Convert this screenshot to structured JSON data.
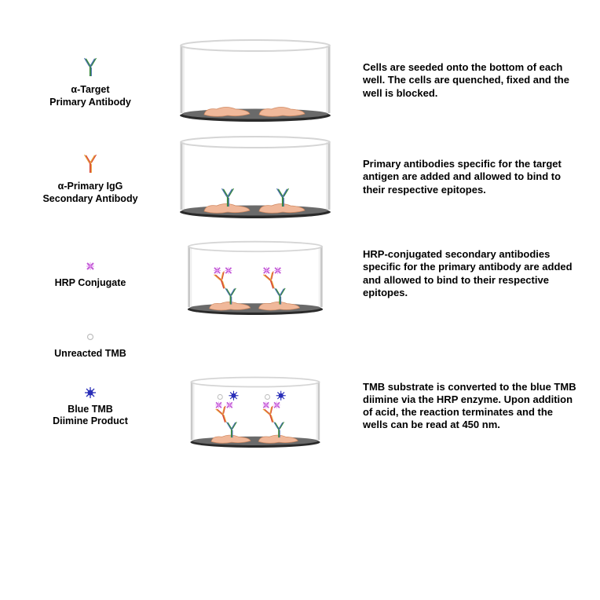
{
  "type": "infographic",
  "background_color": "#ffffff",
  "text_color": "#000000",
  "font_family": "Arial",
  "label_fontsize": 12.5,
  "desc_fontsize": 13,
  "colors": {
    "antibody_primary_a": "#3a8a3a",
    "antibody_primary_b": "#4a6fb0",
    "antibody_secondary_a": "#d94a3a",
    "antibody_secondary_b": "#e8a23a",
    "hrp": "#c25ad6",
    "tmb_unreacted": "#bfbfbf",
    "tmb_blue": "#2a2fb8",
    "cell": "#f0b89a",
    "cell_stroke": "#d08860",
    "well_wall": "#c8c8c8",
    "well_wall_light": "#eeeeee",
    "well_base": "#2a2a2a",
    "well_base_mid": "#6a6a6a"
  },
  "legend": [
    {
      "key": "primary_antibody",
      "label": "α-Target\nPrimary Antibody"
    },
    {
      "key": "secondary_antibody",
      "label": "α-Primary IgG\nSecondary Antibody"
    },
    {
      "key": "hrp_conjugate",
      "label": "HRP Conjugate"
    },
    {
      "key": "unreacted_tmb",
      "label": "Unreacted TMB"
    },
    {
      "key": "blue_tmb",
      "label": "Blue TMB\nDiimine Product"
    }
  ],
  "steps": [
    {
      "desc": "Cells are seeded onto the bottom of each well. The cells are quenched, fixed and the well is blocked."
    },
    {
      "desc": "Primary antibodies specific for the target antigen are added and allowed to bind to their respective epitopes."
    },
    {
      "desc": "HRP-conjugated secondary antibodies specific for the primary antibody are added and allowed to bind to their respective epitopes."
    },
    {
      "desc": "TMB substrate is converted to the blue TMB diimine via the HRP enzyme. Upon addition of acid, the reaction terminates and the wells can be read at 450 nm."
    }
  ]
}
